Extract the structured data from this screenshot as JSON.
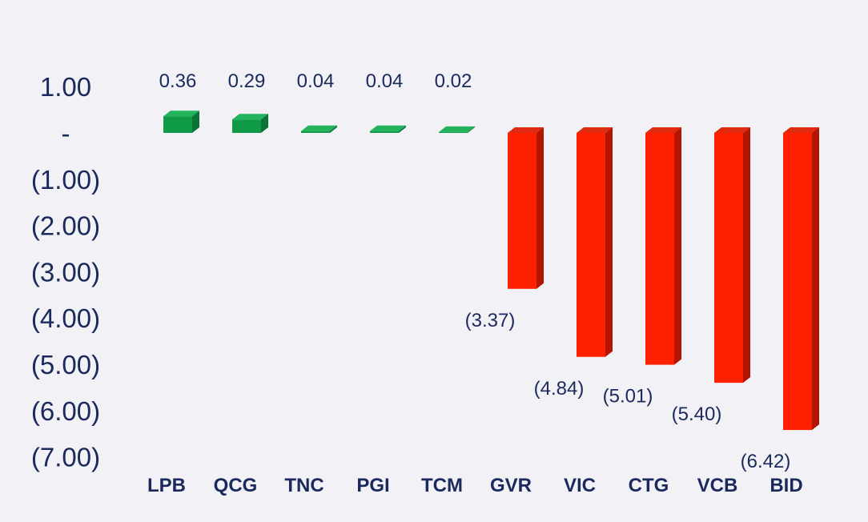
{
  "chart_data": {
    "type": "bar",
    "title": "",
    "xlabel": "",
    "ylabel": "",
    "categories": [
      "LPB",
      "QCG",
      "TNC",
      "PGI",
      "TCM",
      "GVR",
      "VIC",
      "CTG",
      "VCB",
      "BID"
    ],
    "values": [
      0.36,
      0.29,
      0.04,
      0.04,
      0.02,
      -3.37,
      -4.84,
      -5.01,
      -5.4,
      -6.42
    ],
    "data_labels": [
      "0.36",
      "0.29",
      "0.04",
      "0.04",
      "0.02",
      "(3.37)",
      "(4.84)",
      "(5.01)",
      "(5.40)",
      "(6.42)"
    ],
    "y_ticks": [
      {
        "value": 1,
        "label": "1.00"
      },
      {
        "value": 0,
        "label": "-"
      },
      {
        "value": -1,
        "label": "(1.00)"
      },
      {
        "value": -2,
        "label": "(2.00)"
      },
      {
        "value": -3,
        "label": "(3.00)"
      },
      {
        "value": -4,
        "label": "(4.00)"
      },
      {
        "value": -5,
        "label": "(5.00)"
      },
      {
        "value": -6,
        "label": "(6.00)"
      },
      {
        "value": -7,
        "label": "(7.00)"
      }
    ],
    "ylim": [
      -7,
      1
    ],
    "grid": false,
    "legend": "none",
    "colors": {
      "positive_front": "#0f9a48",
      "positive_top": "#22b35c",
      "positive_side": "#0a7436",
      "negative_front": "#ff2000",
      "negative_top": "#e02b10",
      "negative_side": "#b51400",
      "text": "#1b2a5c",
      "background": "#f2f1f6"
    }
  }
}
